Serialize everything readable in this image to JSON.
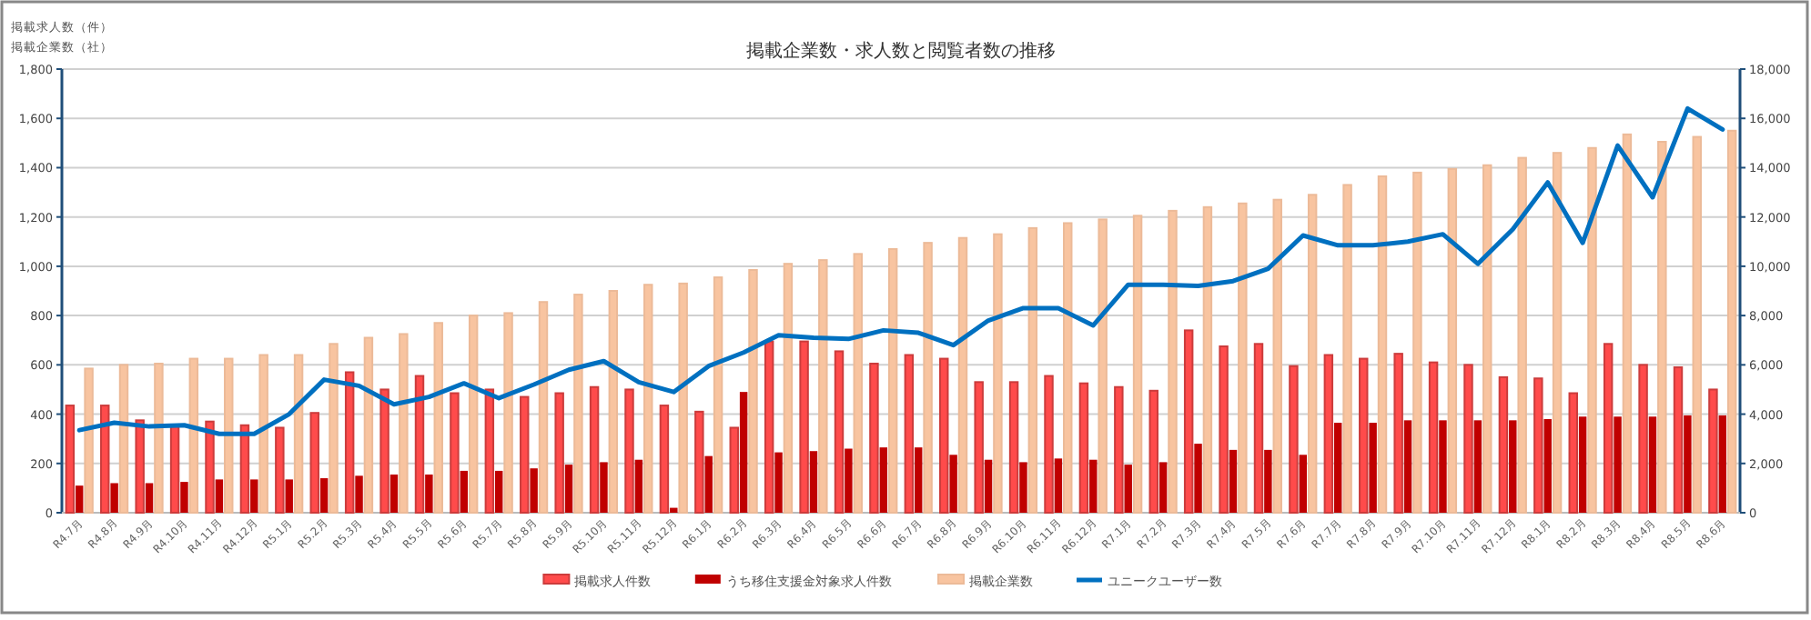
{
  "chart_data": {
    "type": "bar",
    "title": "掲載企業数・求人数と閲覧者数の推移",
    "annotations": [
      "掲載求人数（件）",
      "掲載企業数（社）"
    ],
    "categories": [
      "R4.7月",
      "R4.8月",
      "R4.9月",
      "R4.10月",
      "R4.11月",
      "R4.12月",
      "R5.1月",
      "R5.2月",
      "R5.3月",
      "R5.4月",
      "R5.5月",
      "R5.6月",
      "R5.7月",
      "R5.8月",
      "R5.9月",
      "R5.10月",
      "R5.11月",
      "R5.12月",
      "R6.1月",
      "R6.2月",
      "R6.3月",
      "R6.4月",
      "R6.5月",
      "R6.6月",
      "R6.7月",
      "R6.8月",
      "R6.9月",
      "R6.10月",
      "R6.11月",
      "R6.12月",
      "R7.1月",
      "R7.2月",
      "R7.3月",
      "R7.4月",
      "R7.5月",
      "R7.6月",
      "R7.7月",
      "R7.8月",
      "R7.9月",
      "R7.10月",
      "R7.11月",
      "R7.12月",
      "R8.1月",
      "R8.2月",
      "R8.3月",
      "R8.4月",
      "R8.5月",
      "R8.6月"
    ],
    "series": [
      {
        "name": "掲載求人件数",
        "color": "#ff4b4b",
        "values": [
          435,
          435,
          375,
          350,
          370,
          355,
          345,
          405,
          570,
          500,
          555,
          485,
          500,
          470,
          485,
          510,
          500,
          435,
          410,
          345,
          695,
          695,
          655,
          605,
          640,
          625,
          530,
          530,
          555,
          525,
          510,
          495,
          740,
          675,
          685,
          595,
          640,
          625,
          645,
          610,
          600,
          550,
          545,
          485,
          685,
          600,
          590,
          500
        ]
      },
      {
        "name": "うち移住支援金対象求人件数",
        "color": "#c00000",
        "values": [
          110,
          120,
          120,
          125,
          135,
          135,
          135,
          140,
          150,
          155,
          155,
          170,
          170,
          180,
          195,
          205,
          215,
          20,
          230,
          490,
          245,
          250,
          260,
          265,
          265,
          235,
          215,
          205,
          220,
          215,
          195,
          205,
          280,
          255,
          255,
          235,
          365,
          365,
          375,
          375,
          375,
          375,
          380,
          390,
          390,
          390,
          395,
          395
        ]
      },
      {
        "name": "掲載企業数",
        "color": "#f8c4a0",
        "values": [
          585,
          600,
          605,
          625,
          625,
          640,
          640,
          685,
          710,
          725,
          770,
          800,
          810,
          855,
          885,
          900,
          925,
          930,
          955,
          985,
          1010,
          1025,
          1050,
          1070,
          1095,
          1115,
          1130,
          1155,
          1175,
          1190,
          1205,
          1225,
          1240,
          1255,
          1270,
          1290,
          1330,
          1365,
          1380,
          1395,
          1410,
          1440,
          1460,
          1480,
          1535,
          1505,
          1525,
          1550
        ]
      },
      {
        "name": "ユニークユーザー数",
        "type": "line",
        "axis": "y2",
        "color": "#0070c0",
        "values": [
          3350,
          3650,
          3500,
          3550,
          3200,
          3200,
          4000,
          5400,
          5150,
          4400,
          4700,
          5250,
          4650,
          5200,
          5800,
          6150,
          5300,
          4900,
          5950,
          6500,
          7200,
          7100,
          7050,
          7400,
          7300,
          6800,
          7800,
          8300,
          8300,
          7600,
          9250,
          9250,
          9200,
          9400,
          9900,
          11250,
          10850,
          10850,
          11000,
          11300,
          10100,
          11500,
          13400,
          10950,
          14900,
          12800,
          16400,
          15550
        ]
      }
    ],
    "ylim": [
      0,
      1800
    ],
    "yticks": [
      0,
      {
        "value": 200,
        "label": "200"
      },
      {
        "value": 400,
        "label": "400"
      },
      {
        "value": 600,
        "label": "600"
      },
      {
        "value": 800,
        "label": "800"
      },
      {
        "value": 1000,
        "label": "1,000"
      },
      {
        "value": 1200,
        "label": "1,200"
      },
      {
        "value": 1400,
        "label": "1,400"
      },
      {
        "value": 1600,
        "label": "1,600"
      },
      {
        "value": 1800,
        "label": "1,800"
      }
    ],
    "y2lim": [
      0,
      18000
    ],
    "y2ticks": [
      0,
      {
        "value": 2000,
        "label": "2,000"
      },
      {
        "value": 4000,
        "label": "4,000"
      },
      {
        "value": 6000,
        "label": "6,000"
      },
      {
        "value": 8000,
        "label": "8,000"
      },
      {
        "value": 10000,
        "label": "10,000"
      },
      {
        "value": 12000,
        "label": "12,000"
      },
      {
        "value": 14000,
        "label": "14,000"
      },
      {
        "value": 16000,
        "label": "16,000"
      },
      {
        "value": 18000,
        "label": "18,000"
      }
    ],
    "grid": "y",
    "legend": "bottom",
    "marker": "none",
    "line_style": "solid"
  }
}
